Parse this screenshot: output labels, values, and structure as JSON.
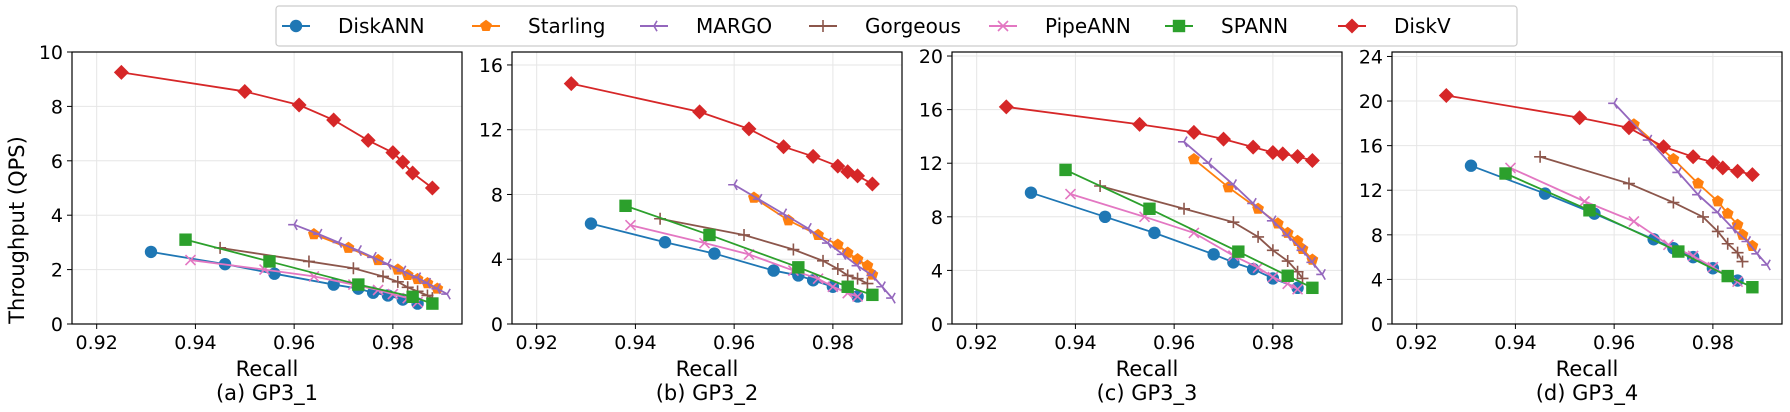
{
  "y_axis_label": "Throughput (QPS)",
  "legend": [
    {
      "name": "DiskANN",
      "color": "#1f77b4",
      "marker": "circle"
    },
    {
      "name": "Starling",
      "color": "#ff7f0e",
      "marker": "pentagon"
    },
    {
      "name": "MARGO",
      "color": "#9467bd",
      "marker": "tri-left"
    },
    {
      "name": "Gorgeous",
      "color": "#8c564b",
      "marker": "plus"
    },
    {
      "name": "PipeANN",
      "color": "#e377c2",
      "marker": "x"
    },
    {
      "name": "SPANN",
      "color": "#2ca02c",
      "marker": "square"
    },
    {
      "name": "DiskV",
      "color": "#d62728",
      "marker": "diamond"
    }
  ],
  "chart_data": [
    {
      "type": "line",
      "title": "(a) GP3_1",
      "xlabel": "Recall",
      "ylabel": "Throughput (QPS)",
      "xlim": [
        0.915,
        0.994
      ],
      "ylim": [
        0,
        10
      ],
      "xticks": [
        "0.92",
        "0.94",
        "0.96",
        "0.98"
      ],
      "xtick_values": [
        0.92,
        0.94,
        0.96,
        0.98
      ],
      "yticks": [
        "0",
        "2",
        "4",
        "6",
        "8",
        "10"
      ],
      "ytick_values": [
        0,
        2,
        4,
        6,
        8,
        10
      ],
      "grid": true,
      "series": [
        {
          "name": "DiskANN",
          "x": [
            0.931,
            0.946,
            0.956,
            0.968,
            0.973,
            0.976,
            0.979,
            0.982,
            0.985
          ],
          "y": [
            2.65,
            2.2,
            1.85,
            1.45,
            1.3,
            1.15,
            1.05,
            0.9,
            0.75
          ]
        },
        {
          "name": "Starling",
          "x": [
            0.964,
            0.971,
            0.977,
            0.981,
            0.983,
            0.985,
            0.987,
            0.989
          ],
          "y": [
            3.3,
            2.8,
            2.35,
            2.0,
            1.8,
            1.65,
            1.5,
            1.3
          ]
        },
        {
          "name": "MARGO",
          "x": [
            0.96,
            0.965,
            0.969,
            0.973,
            0.976,
            0.979,
            0.982,
            0.985,
            0.987,
            0.989,
            0.991
          ],
          "y": [
            3.65,
            3.3,
            3.0,
            2.7,
            2.45,
            2.2,
            1.95,
            1.7,
            1.5,
            1.3,
            1.1
          ]
        },
        {
          "name": "Gorgeous",
          "x": [
            0.945,
            0.963,
            0.972,
            0.978,
            0.981,
            0.983,
            0.985,
            0.987,
            0.988
          ],
          "y": [
            2.8,
            2.3,
            2.05,
            1.75,
            1.55,
            1.35,
            1.2,
            1.05,
            0.95
          ]
        },
        {
          "name": "PipeANN",
          "x": [
            0.939,
            0.954,
            0.964,
            0.972,
            0.977,
            0.98,
            0.983,
            0.985
          ],
          "y": [
            2.35,
            2.0,
            1.75,
            1.45,
            1.25,
            1.1,
            0.95,
            0.8
          ]
        },
        {
          "name": "SPANN",
          "x": [
            0.938,
            0.955,
            0.973,
            0.984,
            0.988
          ],
          "y": [
            3.1,
            2.3,
            1.45,
            1.0,
            0.75
          ]
        },
        {
          "name": "DiskV",
          "x": [
            0.925,
            0.95,
            0.961,
            0.968,
            0.975,
            0.98,
            0.982,
            0.984,
            0.988
          ],
          "y": [
            9.25,
            8.55,
            8.05,
            7.5,
            6.75,
            6.3,
            5.95,
            5.55,
            5.0
          ]
        }
      ]
    },
    {
      "type": "line",
      "title": "(b) GP3_2",
      "xlabel": "Recall",
      "ylabel": "",
      "xlim": [
        0.915,
        0.994
      ],
      "ylim": [
        0,
        16.8
      ],
      "xticks": [
        "0.92",
        "0.94",
        "0.96",
        "0.98"
      ],
      "xtick_values": [
        0.92,
        0.94,
        0.96,
        0.98
      ],
      "yticks": [
        "0",
        "4",
        "8",
        "12",
        "16"
      ],
      "ytick_values": [
        0,
        4,
        8,
        12,
        16
      ],
      "grid": true,
      "series": [
        {
          "name": "DiskANN",
          "x": [
            0.931,
            0.946,
            0.956,
            0.968,
            0.973,
            0.976,
            0.98,
            0.985
          ],
          "y": [
            6.2,
            5.05,
            4.35,
            3.3,
            3.0,
            2.7,
            2.3,
            1.7
          ]
        },
        {
          "name": "Starling",
          "x": [
            0.964,
            0.971,
            0.977,
            0.981,
            0.983,
            0.985,
            0.987,
            0.988
          ],
          "y": [
            7.8,
            6.4,
            5.5,
            4.9,
            4.4,
            4.0,
            3.6,
            3.05
          ]
        },
        {
          "name": "MARGO",
          "x": [
            0.96,
            0.965,
            0.97,
            0.975,
            0.979,
            0.982,
            0.985,
            0.988,
            0.99,
            0.992
          ],
          "y": [
            8.6,
            7.7,
            6.8,
            5.9,
            5.0,
            4.3,
            3.6,
            3.0,
            2.3,
            1.6
          ]
        },
        {
          "name": "Gorgeous",
          "x": [
            0.945,
            0.962,
            0.972,
            0.978,
            0.981,
            0.983,
            0.985,
            0.987
          ],
          "y": [
            6.5,
            5.5,
            4.6,
            3.9,
            3.4,
            3.0,
            2.8,
            2.5
          ]
        },
        {
          "name": "PipeANN",
          "x": [
            0.939,
            0.954,
            0.963,
            0.972,
            0.977,
            0.98,
            0.983,
            0.985
          ],
          "y": [
            6.1,
            5.0,
            4.3,
            3.3,
            2.8,
            2.3,
            1.9,
            1.7
          ]
        },
        {
          "name": "SPANN",
          "x": [
            0.938,
            0.955,
            0.973,
            0.983,
            0.988
          ],
          "y": [
            7.3,
            5.5,
            3.5,
            2.3,
            1.8
          ]
        },
        {
          "name": "DiskV",
          "x": [
            0.927,
            0.953,
            0.963,
            0.97,
            0.976,
            0.981,
            0.983,
            0.985,
            0.988
          ],
          "y": [
            14.85,
            13.1,
            12.05,
            10.95,
            10.35,
            9.75,
            9.4,
            9.15,
            8.65
          ]
        }
      ]
    },
    {
      "type": "line",
      "title": "(c) GP3_3",
      "xlabel": "Recall",
      "ylabel": "",
      "xlim": [
        0.915,
        0.994
      ],
      "ylim": [
        0,
        20.3
      ],
      "xticks": [
        "0.92",
        "0.94",
        "0.96",
        "0.98"
      ],
      "xtick_values": [
        0.92,
        0.94,
        0.96,
        0.98
      ],
      "yticks": [
        "0",
        "4",
        "8",
        "12",
        "16",
        "20"
      ],
      "ytick_values": [
        0,
        4,
        8,
        12,
        16,
        20
      ],
      "grid": true,
      "series": [
        {
          "name": "DiskANN",
          "x": [
            0.931,
            0.946,
            0.956,
            0.968,
            0.972,
            0.976,
            0.98,
            0.985
          ],
          "y": [
            9.8,
            8.0,
            6.8,
            5.2,
            4.6,
            4.1,
            3.4,
            2.7
          ]
        },
        {
          "name": "Starling",
          "x": [
            0.964,
            0.971,
            0.977,
            0.981,
            0.983,
            0.985,
            0.986,
            0.988
          ],
          "y": [
            12.3,
            10.2,
            8.6,
            7.5,
            6.8,
            6.2,
            5.6,
            4.8
          ]
        },
        {
          "name": "MARGO",
          "x": [
            0.962,
            0.967,
            0.972,
            0.976,
            0.98,
            0.983,
            0.986,
            0.988,
            0.99
          ],
          "y": [
            13.6,
            12.0,
            10.4,
            9.0,
            7.7,
            6.6,
            5.5,
            4.6,
            3.7
          ]
        },
        {
          "name": "Gorgeous",
          "x": [
            0.945,
            0.962,
            0.972,
            0.977,
            0.98,
            0.983,
            0.985,
            0.986
          ],
          "y": [
            10.3,
            8.6,
            7.6,
            6.5,
            5.5,
            4.7,
            3.9,
            3.4
          ]
        },
        {
          "name": "PipeANN",
          "x": [
            0.939,
            0.954,
            0.964,
            0.972,
            0.977,
            0.98,
            0.983,
            0.985
          ],
          "y": [
            9.7,
            8.0,
            6.8,
            5.1,
            4.2,
            3.5,
            3.0,
            2.6
          ]
        },
        {
          "name": "SPANN",
          "x": [
            0.938,
            0.955,
            0.973,
            0.983,
            0.988
          ],
          "y": [
            11.5,
            8.6,
            5.4,
            3.6,
            2.7
          ]
        },
        {
          "name": "DiskV",
          "x": [
            0.926,
            0.953,
            0.964,
            0.97,
            0.976,
            0.98,
            0.982,
            0.985,
            0.988
          ],
          "y": [
            16.2,
            14.9,
            14.3,
            13.8,
            13.2,
            12.8,
            12.7,
            12.5,
            12.2
          ]
        }
      ]
    },
    {
      "type": "line",
      "title": "(d) GP3_4",
      "xlabel": "Recall",
      "ylabel": "",
      "xlim": [
        0.915,
        0.994
      ],
      "ylim": [
        0,
        24.4
      ],
      "xticks": [
        "0.92",
        "0.94",
        "0.96",
        "0.98"
      ],
      "xtick_values": [
        0.92,
        0.94,
        0.96,
        0.98
      ],
      "yticks": [
        "0",
        "4",
        "8",
        "12",
        "16",
        "20",
        "24"
      ],
      "ytick_values": [
        0,
        4,
        8,
        12,
        16,
        20,
        24
      ],
      "grid": true,
      "series": [
        {
          "name": "DiskANN",
          "x": [
            0.931,
            0.946,
            0.956,
            0.968,
            0.972,
            0.976,
            0.98,
            0.985
          ],
          "y": [
            14.2,
            11.7,
            9.9,
            7.6,
            6.8,
            6.0,
            5.0,
            3.9
          ]
        },
        {
          "name": "Starling",
          "x": [
            0.964,
            0.972,
            0.977,
            0.981,
            0.983,
            0.985,
            0.986,
            0.988
          ],
          "y": [
            17.9,
            14.8,
            12.6,
            11.0,
            9.9,
            8.9,
            8.0,
            7.0
          ]
        },
        {
          "name": "MARGO",
          "x": [
            0.96,
            0.967,
            0.973,
            0.977,
            0.981,
            0.984,
            0.987,
            0.989,
            0.991
          ],
          "y": [
            19.8,
            16.5,
            13.6,
            11.6,
            10.0,
            8.6,
            7.4,
            6.3,
            5.3
          ]
        },
        {
          "name": "Gorgeous",
          "x": [
            0.945,
            0.963,
            0.972,
            0.978,
            0.981,
            0.983,
            0.985,
            0.986
          ],
          "y": [
            15.0,
            12.6,
            10.9,
            9.6,
            8.3,
            7.2,
            6.4,
            5.6
          ]
        },
        {
          "name": "PipeANN",
          "x": [
            0.939,
            0.954,
            0.964,
            0.971,
            0.976,
            0.98,
            0.983,
            0.985
          ],
          "y": [
            14.0,
            11.0,
            9.2,
            7.1,
            6.1,
            5.1,
            4.3,
            3.8
          ]
        },
        {
          "name": "SPANN",
          "x": [
            0.938,
            0.955,
            0.973,
            0.983,
            0.988
          ],
          "y": [
            13.5,
            10.2,
            6.5,
            4.3,
            3.3
          ]
        },
        {
          "name": "DiskV",
          "x": [
            0.926,
            0.953,
            0.963,
            0.97,
            0.976,
            0.98,
            0.982,
            0.985,
            0.988
          ],
          "y": [
            20.5,
            18.5,
            17.6,
            15.9,
            15.0,
            14.5,
            14.0,
            13.7,
            13.4
          ]
        }
      ]
    }
  ]
}
